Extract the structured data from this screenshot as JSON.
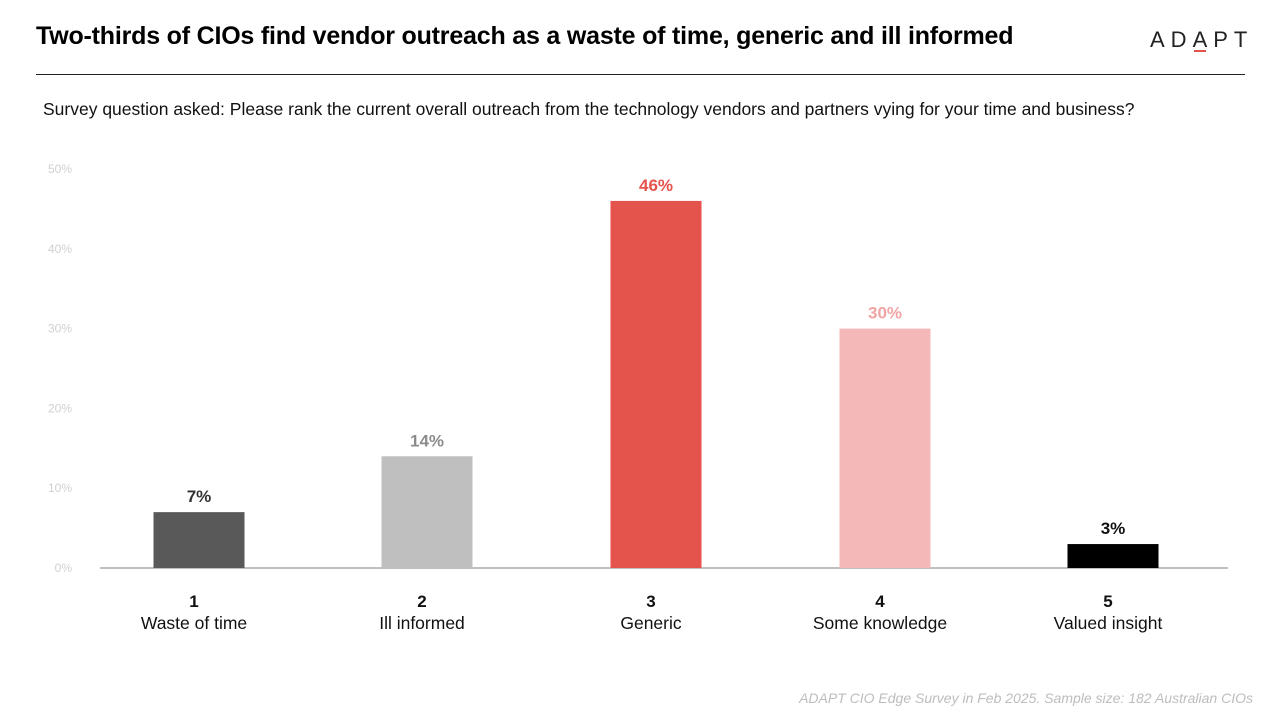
{
  "header": {
    "title": "Two-thirds of CIOs find vendor outreach as a waste of time, generic and ill informed",
    "logo_prefix": "AD",
    "logo_mark": "A",
    "logo_suffix": "PT"
  },
  "subtitle": "Survey question asked: Please rank the current overall outreach from the technology vendors and partners vying for your time and business?",
  "footer": {
    "source": "ADAPT CIO Edge Survey in Feb 2025. Sample size: 182 Australian CIOs"
  },
  "chart_data": {
    "type": "bar",
    "categories": [
      {
        "num": "1",
        "label": "Waste of time"
      },
      {
        "num": "2",
        "label": "Ill informed"
      },
      {
        "num": "3",
        "label": "Generic"
      },
      {
        "num": "4",
        "label": "Some knowledge"
      },
      {
        "num": "5",
        "label": "Valued insight"
      }
    ],
    "values": [
      7,
      14,
      46,
      30,
      3
    ],
    "value_labels": [
      "7%",
      "14%",
      "46%",
      "30%",
      "3%"
    ],
    "colors": [
      "#595959",
      "#bfbfbf",
      "#e5534d",
      "#f5b8b8",
      "#000000"
    ],
    "label_colors": [
      "#333333",
      "#8c8c8c",
      "#e5534d",
      "#f2a3a3",
      "#111111"
    ],
    "yticks": [
      "0%",
      "10%",
      "20%",
      "30%",
      "40%",
      "50%"
    ],
    "ylim": [
      0,
      50
    ],
    "grid": false
  }
}
